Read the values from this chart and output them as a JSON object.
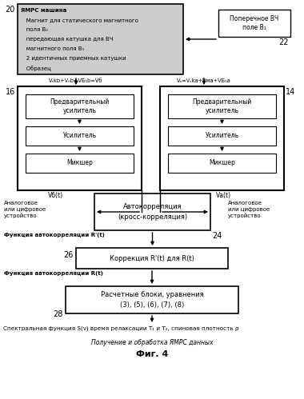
{
  "title": "Фиг. 4",
  "subtitle": "Получение и обработка ЯМРС данных",
  "bottom_text": "Спектральная функция S(ν) время релаксации T₁ и T₂, спиновая плотность ρ",
  "bg_color": "#ffffff",
  "gray_fill": "#cccccc",
  "label_20": "20",
  "label_14": "14",
  "label_16": "16",
  "label_22": "22",
  "label_24": "24",
  "label_26": "26",
  "label_28": "28",
  "ymrs_line1": "ЯМРС машина",
  "ymrs_line2": "   Магнит для статического магнитного",
  "ymrs_line3": "   поля B₀",
  "ymrs_line4": "   передающая катушка для ВЧ",
  "ymrs_line5": "   магнитного поля B₁",
  "ymrs_line6": "   2 идентичных приемных катушки",
  "ymrs_line7": "   Образец",
  "rf_text": "Поперечное ВЧ\nполе B₁",
  "vb_formula": "Vₛkb+Vₙb+VБ₁b=Vб",
  "va_formula": "Vₐ=Vₛka+Vмa+VБ₁a",
  "preamp_text": "Предварительный\nусилитель",
  "amp_text": "Усилитель",
  "mixer_text": "Микшер",
  "vbt_label": "Vб(t)",
  "vat_label": "Vа(t)",
  "analog_left": "Аналоговое\nили цифровое\nустройство",
  "analog_right": "Аналоговое\nили цифровое\nустройство",
  "autocorr_text": "Автокорреляция\n(кросс-корреляция)",
  "autocorr_prime_label": "Функция автокорреляции R'(t)",
  "correction_text": "Коррекция R'(t) для R(t)",
  "autocorr_r_label": "Функция автокорреляции R(t)",
  "calc_text": "Расчетные блоки, уравнения\n(3), (5), (6), (7), (8)"
}
